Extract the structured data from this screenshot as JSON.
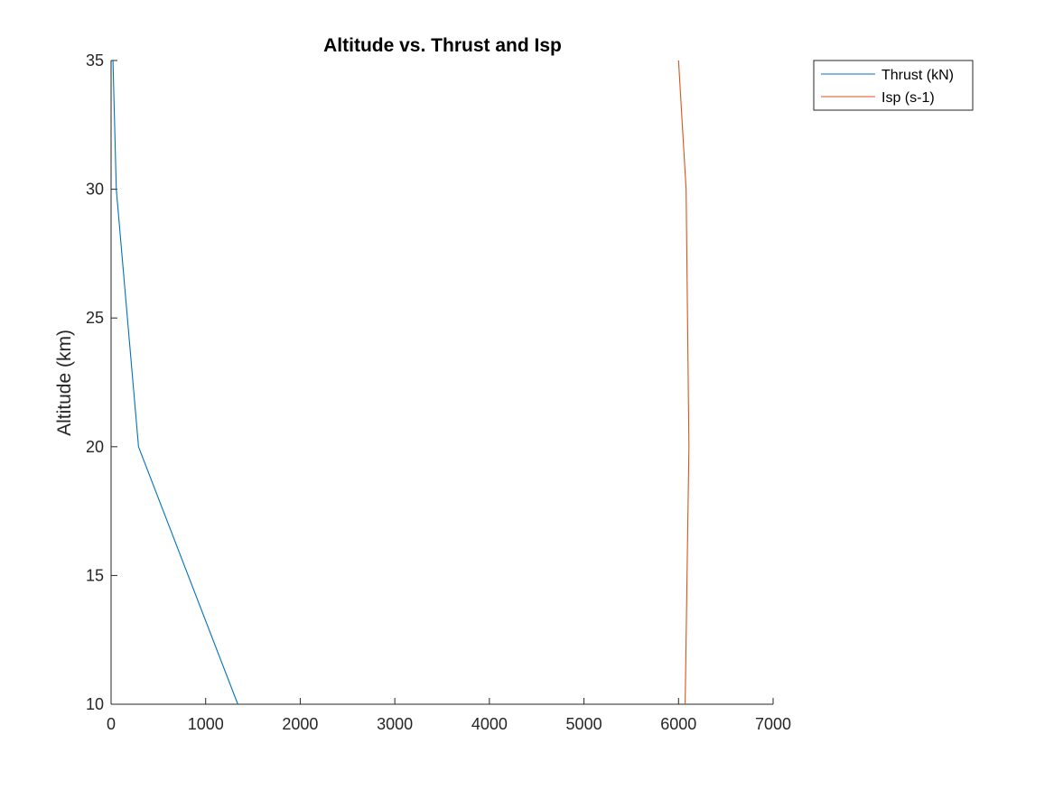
{
  "chart_data": {
    "type": "line",
    "title": "Altitude vs. Thrust and Isp",
    "xlabel": "",
    "ylabel": "Altitude (km)",
    "xlim": [
      0,
      7000
    ],
    "ylim": [
      10,
      35
    ],
    "xticks": [
      0,
      1000,
      2000,
      3000,
      4000,
      5000,
      6000,
      7000
    ],
    "yticks": [
      10,
      15,
      20,
      25,
      30,
      35
    ],
    "grid": false,
    "legend_position": "outside-top-right",
    "series": [
      {
        "name": "Thrust (kN)",
        "color": "#0072BD",
        "x": [
          1340,
          290,
          55,
          20
        ],
        "y": [
          10,
          20,
          30,
          35
        ]
      },
      {
        "name": "Isp (s-1)",
        "color": "#D95319",
        "x": [
          6070,
          6110,
          6080,
          6000
        ],
        "y": [
          10,
          20,
          30,
          35
        ]
      }
    ]
  }
}
